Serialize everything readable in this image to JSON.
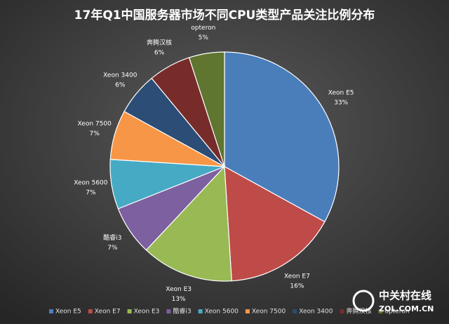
{
  "chart_data": {
    "type": "pie",
    "title": "17年Q1中国服务器市场不同CPU类型产品关注比例分布",
    "categories": [
      "Xeon E5",
      "Xeon E7",
      "Xeon E3",
      "酷睿i3",
      "Xeon 5600",
      "Xeon 7500",
      "Xeon 3400",
      "奔腾汉核",
      "opteron"
    ],
    "values": [
      33,
      16,
      13,
      7,
      7,
      7,
      6,
      6,
      5
    ],
    "value_labels": [
      "33%",
      "16%",
      "13%",
      "7%",
      "7%",
      "7%",
      "6%",
      "6%",
      "5%"
    ],
    "colors": [
      "#4a7ebb",
      "#be4b48",
      "#98b954",
      "#7d60a0",
      "#46aac5",
      "#f79646",
      "#2c4d75",
      "#772c2a",
      "#5f7530"
    ],
    "legend": "bottom"
  },
  "watermark": {
    "name": "中关村在线",
    "url": "ZOL.COM.CN"
  }
}
